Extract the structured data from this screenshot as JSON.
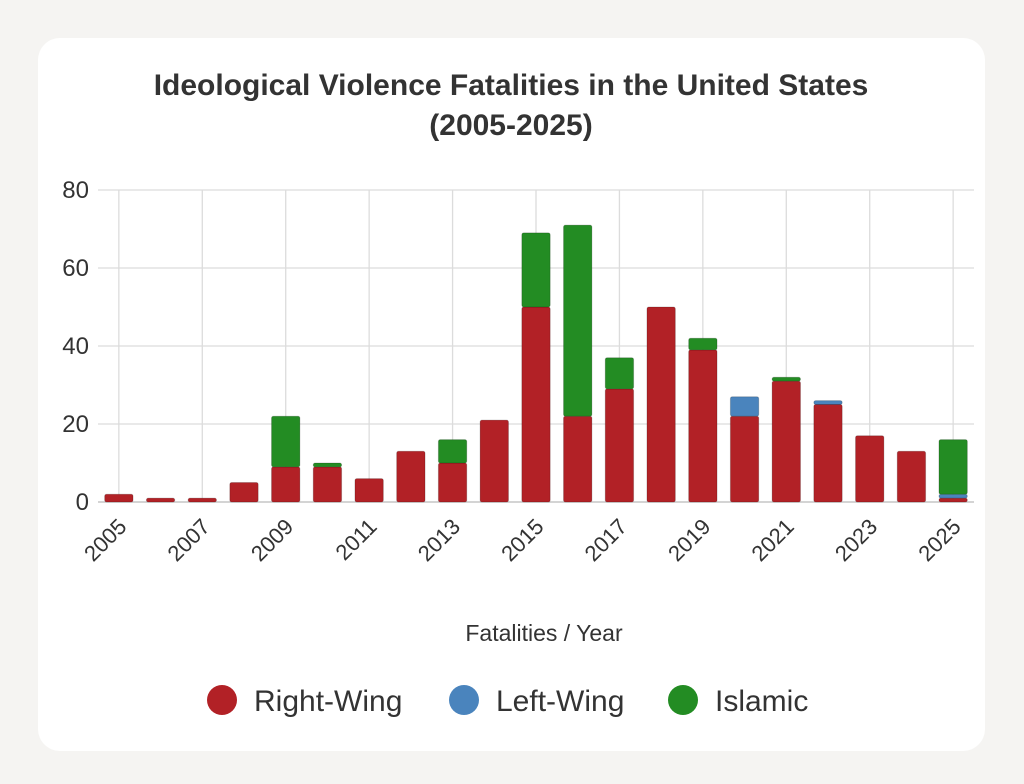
{
  "chart_data": {
    "type": "bar",
    "stacked": true,
    "title": "Ideological Violence Fatalities in the United States (2005-2025)",
    "title_lines": [
      "Ideological Violence Fatalities in the United States",
      "(2005-2025)"
    ],
    "xlabel": "Fatalities / Year",
    "ylabel": "",
    "ylim": [
      0,
      80
    ],
    "yticks": [
      0,
      20,
      40,
      60,
      80
    ],
    "grid": true,
    "legend_position": "bottom",
    "categories": [
      "2005",
      "2006",
      "2007",
      "2008",
      "2009",
      "2010",
      "2011",
      "2012",
      "2013",
      "2014",
      "2015",
      "2016",
      "2017",
      "2018",
      "2019",
      "2020",
      "2021",
      "2022",
      "2023",
      "2024",
      "2025"
    ],
    "xtick_labels": [
      "2005",
      "2007",
      "2009",
      "2011",
      "2013",
      "2015",
      "2017",
      "2019",
      "2021",
      "2023",
      "2025"
    ],
    "series": [
      {
        "name": "Right-Wing",
        "color": "#b22126",
        "values": [
          2,
          1,
          1,
          5,
          9,
          9,
          6,
          13,
          10,
          21,
          50,
          22,
          29,
          50,
          39,
          22,
          31,
          25,
          17,
          13,
          1
        ]
      },
      {
        "name": "Left-Wing",
        "color": "#4a84bd",
        "values": [
          0,
          0,
          0,
          0,
          0,
          0,
          0,
          0,
          0,
          0,
          0,
          0,
          0,
          0,
          0,
          5,
          0,
          1,
          0,
          0,
          1
        ]
      },
      {
        "name": "Islamic",
        "color": "#238c23",
        "values": [
          0,
          0,
          0,
          0,
          13,
          1,
          0,
          0,
          6,
          0,
          19,
          49,
          8,
          0,
          3,
          0,
          1,
          0,
          0,
          0,
          14
        ]
      }
    ]
  }
}
